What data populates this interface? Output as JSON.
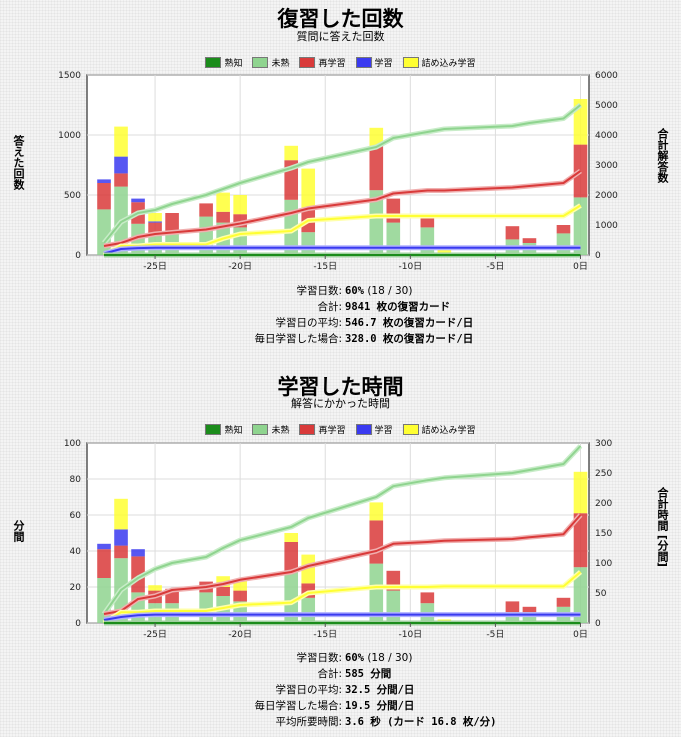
{
  "colors": {
    "mature": "#1b8c1b",
    "young": "#8fd48f",
    "relearn": "#d93a3a",
    "learn": "#3a3af0",
    "cram": "#ffff33"
  },
  "legend": [
    {
      "key": "mature",
      "label": "熟知"
    },
    {
      "key": "young",
      "label": "未熟"
    },
    {
      "key": "relearn",
      "label": "再学習"
    },
    {
      "key": "learn",
      "label": "学習"
    },
    {
      "key": "cram",
      "label": "詰め込み学習"
    }
  ],
  "reviews": {
    "title": "復習した回数",
    "subtitle": "質問に答えた回数",
    "ylabel_left": "答えた回数",
    "ylabel_right": "合計解答数",
    "stats": [
      {
        "key": "学習日数:",
        "value": "60%",
        "extra": "(18 / 30)"
      },
      {
        "key": "合計:",
        "value": "9841 枚の復習カード",
        "extra": ""
      },
      {
        "key": "学習日の平均:",
        "value": "546.7 枚の復習カード/日",
        "extra": ""
      },
      {
        "key": "毎日学習した場合:",
        "value": "328.0 枚の復習カード/日",
        "extra": ""
      }
    ]
  },
  "time": {
    "title": "学習した時間",
    "subtitle": "解答にかかった時間",
    "ylabel_left": "分間",
    "ylabel_right": "合計時間 [分間]",
    "stats": [
      {
        "key": "学習日数:",
        "value": "60%",
        "extra": "(18 / 30)"
      },
      {
        "key": "合計:",
        "value": "585 分間",
        "extra": ""
      },
      {
        "key": "学習日の平均:",
        "value": "32.5 分間/日",
        "extra": ""
      },
      {
        "key": "毎日学習した場合:",
        "value": "19.5 分間/日",
        "extra": ""
      },
      {
        "key": "平均所要時間:",
        "value": "3.6 秒 (カード 16.8 枚/分)",
        "extra": ""
      }
    ]
  },
  "chart_data": [
    {
      "type": "bar",
      "title": "復習した回数",
      "x_ticks": [
        -25,
        -20,
        -15,
        -10,
        -5,
        0
      ],
      "x_tick_labels": [
        "-25日",
        "-20日",
        "-15日",
        "-10日",
        "-5日",
        "0日"
      ],
      "xlim": [
        -29,
        0.5
      ],
      "ylim": [
        0,
        1500
      ],
      "y_ticks": [
        0,
        500,
        1000,
        1500
      ],
      "y2lim": [
        0,
        6000
      ],
      "y2_ticks": [
        0,
        1000,
        2000,
        3000,
        4000,
        5000,
        6000
      ],
      "grid": true,
      "legend_position": "top-center",
      "stacked_bars": [
        {
          "day": -28,
          "mature": 0,
          "young": 380,
          "relearn": 220,
          "learn": 30,
          "cram": 0
        },
        {
          "day": -27,
          "mature": 0,
          "young": 570,
          "relearn": 110,
          "learn": 140,
          "cram": 250
        },
        {
          "day": -26,
          "mature": 0,
          "young": 260,
          "relearn": 180,
          "learn": 30,
          "cram": 0
        },
        {
          "day": -25,
          "mature": 0,
          "young": 180,
          "relearn": 90,
          "learn": 10,
          "cram": 70
        },
        {
          "day": -24,
          "mature": 0,
          "young": 190,
          "relearn": 160,
          "learn": 0,
          "cram": 0
        },
        {
          "day": -22,
          "mature": 0,
          "young": 320,
          "relearn": 110,
          "learn": 0,
          "cram": 0
        },
        {
          "day": -21,
          "mature": 0,
          "young": 270,
          "relearn": 90,
          "learn": 0,
          "cram": 160
        },
        {
          "day": -20,
          "mature": 0,
          "young": 230,
          "relearn": 110,
          "learn": 0,
          "cram": 160
        },
        {
          "day": -17,
          "mature": 0,
          "young": 460,
          "relearn": 330,
          "learn": 0,
          "cram": 120
        },
        {
          "day": -16,
          "mature": 0,
          "young": 190,
          "relearn": 200,
          "learn": 0,
          "cram": 330
        },
        {
          "day": -12,
          "mature": 0,
          "young": 540,
          "relearn": 370,
          "learn": 0,
          "cram": 150
        },
        {
          "day": -11,
          "mature": 0,
          "young": 270,
          "relearn": 200,
          "learn": 0,
          "cram": 0
        },
        {
          "day": -9,
          "mature": 0,
          "young": 230,
          "relearn": 110,
          "learn": 0,
          "cram": 0
        },
        {
          "day": -8,
          "mature": 0,
          "young": 0,
          "relearn": 0,
          "learn": 0,
          "cram": 70
        },
        {
          "day": -4,
          "mature": 0,
          "young": 130,
          "relearn": 110,
          "learn": 0,
          "cram": 0
        },
        {
          "day": -3,
          "mature": 0,
          "young": 100,
          "relearn": 40,
          "learn": 0,
          "cram": 0
        },
        {
          "day": -1,
          "mature": 0,
          "young": 180,
          "relearn": 70,
          "learn": 0,
          "cram": 0
        },
        {
          "day": 0,
          "mature": 0,
          "young": 480,
          "relearn": 440,
          "learn": 0,
          "cram": 380
        }
      ],
      "cumulative_series": [
        {
          "key": "young",
          "points": [
            [
              -28,
              400
            ],
            [
              -27,
              1100
            ],
            [
              -26,
              1400
            ],
            [
              -25,
              1500
            ],
            [
              -24,
              1700
            ],
            [
              -22,
              2000
            ],
            [
              -21,
              2200
            ],
            [
              -20,
              2400
            ],
            [
              -17,
              2900
            ],
            [
              -16,
              3100
            ],
            [
              -12,
              3600
            ],
            [
              -11,
              3900
            ],
            [
              -9,
              4100
            ],
            [
              -8,
              4200
            ],
            [
              -4,
              4300
            ],
            [
              -3,
              4400
            ],
            [
              -1,
              4550
            ],
            [
              0,
              5000
            ]
          ]
        },
        {
          "key": "relearn",
          "points": [
            [
              -28,
              300
            ],
            [
              -27,
              400
            ],
            [
              -26,
              600
            ],
            [
              -25,
              700
            ],
            [
              -24,
              750
            ],
            [
              -22,
              850
            ],
            [
              -21,
              950
            ],
            [
              -20,
              1050
            ],
            [
              -17,
              1400
            ],
            [
              -16,
              1550
            ],
            [
              -12,
              1850
            ],
            [
              -11,
              2050
            ],
            [
              -9,
              2150
            ],
            [
              -8,
              2150
            ],
            [
              -4,
              2250
            ],
            [
              -3,
              2300
            ],
            [
              -1,
              2400
            ],
            [
              0,
              2800
            ]
          ]
        },
        {
          "key": "cram",
          "points": [
            [
              -28,
              0
            ],
            [
              -27,
              300
            ],
            [
              -26,
              300
            ],
            [
              -25,
              350
            ],
            [
              -24,
              350
            ],
            [
              -22,
              350
            ],
            [
              -21,
              550
            ],
            [
              -20,
              700
            ],
            [
              -17,
              800
            ],
            [
              -16,
              1150
            ],
            [
              -12,
              1300
            ],
            [
              -11,
              1300
            ],
            [
              -9,
              1300
            ],
            [
              -8,
              1300
            ],
            [
              -4,
              1300
            ],
            [
              -3,
              1300
            ],
            [
              -1,
              1300
            ],
            [
              0,
              1650
            ]
          ]
        },
        {
          "key": "learn",
          "points": [
            [
              -28,
              50
            ],
            [
              -27,
              200
            ],
            [
              -26,
              230
            ],
            [
              -25,
              240
            ],
            [
              0,
              240
            ]
          ]
        },
        {
          "key": "mature",
          "points": [
            [
              -28,
              0
            ],
            [
              0,
              0
            ]
          ]
        }
      ]
    },
    {
      "type": "bar",
      "title": "学習した時間",
      "x_ticks": [
        -25,
        -20,
        -15,
        -10,
        -5,
        0
      ],
      "x_tick_labels": [
        "-25日",
        "-20日",
        "-15日",
        "-10日",
        "-5日",
        "0日"
      ],
      "xlim": [
        -29,
        0.5
      ],
      "ylim": [
        0,
        100
      ],
      "y_ticks": [
        0,
        20,
        40,
        60,
        80,
        100
      ],
      "y2lim": [
        0,
        300
      ],
      "y2_ticks": [
        0,
        50,
        100,
        150,
        200,
        250,
        300
      ],
      "grid": true,
      "legend_position": "top-center",
      "stacked_bars": [
        {
          "day": -28,
          "mature": 0,
          "young": 25,
          "relearn": 16,
          "learn": 3,
          "cram": 0
        },
        {
          "day": -27,
          "mature": 0,
          "young": 36,
          "relearn": 7,
          "learn": 9,
          "cram": 17
        },
        {
          "day": -26,
          "mature": 0,
          "young": 17,
          "relearn": 20,
          "learn": 4,
          "cram": 0
        },
        {
          "day": -25,
          "mature": 0,
          "young": 11,
          "relearn": 7,
          "learn": 0,
          "cram": 3
        },
        {
          "day": -24,
          "mature": 0,
          "young": 11,
          "relearn": 8,
          "learn": 0,
          "cram": 0
        },
        {
          "day": -22,
          "mature": 0,
          "young": 17,
          "relearn": 6,
          "learn": 0,
          "cram": 0
        },
        {
          "day": -21,
          "mature": 0,
          "young": 15,
          "relearn": 5,
          "learn": 0,
          "cram": 6
        },
        {
          "day": -20,
          "mature": 0,
          "young": 12,
          "relearn": 6,
          "learn": 0,
          "cram": 6
        },
        {
          "day": -17,
          "mature": 0,
          "young": 29,
          "relearn": 16,
          "learn": 0,
          "cram": 5
        },
        {
          "day": -16,
          "mature": 0,
          "young": 14,
          "relearn": 8,
          "learn": 0,
          "cram": 16
        },
        {
          "day": -12,
          "mature": 0,
          "young": 33,
          "relearn": 24,
          "learn": 0,
          "cram": 10
        },
        {
          "day": -11,
          "mature": 0,
          "young": 18,
          "relearn": 11,
          "learn": 0,
          "cram": 0
        },
        {
          "day": -9,
          "mature": 0,
          "young": 11,
          "relearn": 6,
          "learn": 0,
          "cram": 0
        },
        {
          "day": -8,
          "mature": 0,
          "young": 0,
          "relearn": 0,
          "learn": 0,
          "cram": 2
        },
        {
          "day": -4,
          "mature": 0,
          "young": 6,
          "relearn": 6,
          "learn": 0,
          "cram": 0
        },
        {
          "day": -3,
          "mature": 0,
          "young": 6,
          "relearn": 3,
          "learn": 0,
          "cram": 0
        },
        {
          "day": -1,
          "mature": 0,
          "young": 9,
          "relearn": 5,
          "learn": 0,
          "cram": 0
        },
        {
          "day": 0,
          "mature": 0,
          "young": 31,
          "relearn": 30,
          "learn": 0,
          "cram": 23
        }
      ],
      "cumulative_series": [
        {
          "key": "young",
          "points": [
            [
              -28,
              15
            ],
            [
              -27,
              55
            ],
            [
              -26,
              75
            ],
            [
              -25,
              90
            ],
            [
              -24,
              100
            ],
            [
              -22,
              110
            ],
            [
              -21,
              125
            ],
            [
              -20,
              138
            ],
            [
              -17,
              160
            ],
            [
              -16,
              175
            ],
            [
              -12,
              210
            ],
            [
              -11,
              228
            ],
            [
              -9,
              238
            ],
            [
              -8,
              242
            ],
            [
              -4,
              250
            ],
            [
              -3,
              255
            ],
            [
              -1,
              265
            ],
            [
              0,
              295
            ]
          ]
        },
        {
          "key": "relearn",
          "points": [
            [
              -28,
              15
            ],
            [
              -27,
              20
            ],
            [
              -26,
              40
            ],
            [
              -25,
              45
            ],
            [
              -24,
              55
            ],
            [
              -22,
              60
            ],
            [
              -21,
              65
            ],
            [
              -20,
              72
            ],
            [
              -17,
              85
            ],
            [
              -16,
              95
            ],
            [
              -12,
              120
            ],
            [
              -11,
              132
            ],
            [
              -9,
              135
            ],
            [
              -8,
              137
            ],
            [
              -4,
              140
            ],
            [
              -3,
              143
            ],
            [
              -1,
              148
            ],
            [
              0,
              180
            ]
          ]
        },
        {
          "key": "cram",
          "points": [
            [
              -28,
              0
            ],
            [
              -27,
              18
            ],
            [
              -26,
              18
            ],
            [
              -25,
              20
            ],
            [
              -24,
              20
            ],
            [
              -22,
              20
            ],
            [
              -21,
              25
            ],
            [
              -20,
              30
            ],
            [
              -17,
              34
            ],
            [
              -16,
              50
            ],
            [
              -12,
              60
            ],
            [
              -11,
              60
            ],
            [
              -9,
              60
            ],
            [
              -8,
              61
            ],
            [
              -4,
              61
            ],
            [
              -3,
              61
            ],
            [
              -1,
              61
            ],
            [
              0,
              85
            ]
          ]
        },
        {
          "key": "learn",
          "points": [
            [
              -28,
              5
            ],
            [
              -27,
              10
            ],
            [
              -26,
              13
            ],
            [
              -25,
              14
            ],
            [
              0,
              14
            ]
          ]
        },
        {
          "key": "mature",
          "points": [
            [
              -28,
              0
            ],
            [
              0,
              0
            ]
          ]
        }
      ]
    }
  ]
}
